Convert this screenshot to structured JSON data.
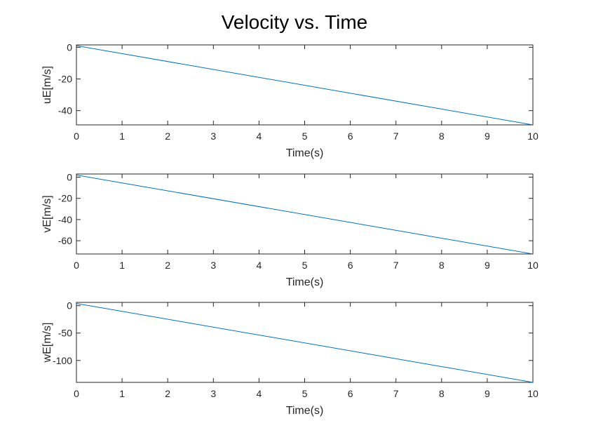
{
  "figure": {
    "title": "Velocity vs. Time",
    "line_color": "#0072BD"
  },
  "chart_data": [
    {
      "type": "line",
      "xlabel": "Time(s)",
      "ylabel": "uE[m/s]",
      "xlim": [
        0,
        10
      ],
      "ylim": [
        -49,
        1.5
      ],
      "xticks": [
        0,
        1,
        2,
        3,
        4,
        5,
        6,
        7,
        8,
        9,
        10
      ],
      "xtick_labels": [
        "0",
        "1",
        "2",
        "3",
        "4",
        "5",
        "6",
        "7",
        "8",
        "9",
        "10"
      ],
      "yticks": [
        0,
        -20,
        -40
      ],
      "ytick_labels": [
        "0",
        "-20",
        "-40"
      ],
      "grid": false,
      "series": [
        {
          "x": [
            0,
            10
          ],
          "y": [
            1.0,
            -49.0
          ]
        }
      ]
    },
    {
      "type": "line",
      "xlabel": "Time(s)",
      "ylabel": "vE[m/s]",
      "xlim": [
        0,
        10
      ],
      "ylim": [
        -72.5,
        3
      ],
      "xticks": [
        0,
        1,
        2,
        3,
        4,
        5,
        6,
        7,
        8,
        9,
        10
      ],
      "xtick_labels": [
        "0",
        "1",
        "2",
        "3",
        "4",
        "5",
        "6",
        "7",
        "8",
        "9",
        "10"
      ],
      "yticks": [
        0,
        -20,
        -40,
        -60
      ],
      "ytick_labels": [
        "0",
        "-20",
        "-40",
        "-60"
      ],
      "grid": false,
      "series": [
        {
          "x": [
            0,
            10
          ],
          "y": [
            2.0,
            -72.5
          ]
        }
      ]
    },
    {
      "type": "line",
      "xlabel": "Time(s)",
      "ylabel": "wE[m/s]",
      "xlim": [
        0,
        10
      ],
      "ylim": [
        -140,
        6
      ],
      "xticks": [
        0,
        1,
        2,
        3,
        4,
        5,
        6,
        7,
        8,
        9,
        10
      ],
      "xtick_labels": [
        "0",
        "1",
        "2",
        "3",
        "4",
        "5",
        "6",
        "7",
        "8",
        "9",
        "10"
      ],
      "yticks": [
        0,
        -50,
        -100
      ],
      "ytick_labels": [
        "0",
        "-50",
        "-100"
      ],
      "grid": false,
      "series": [
        {
          "x": [
            0,
            10
          ],
          "y": [
            4.0,
            -140.0
          ]
        }
      ]
    }
  ]
}
